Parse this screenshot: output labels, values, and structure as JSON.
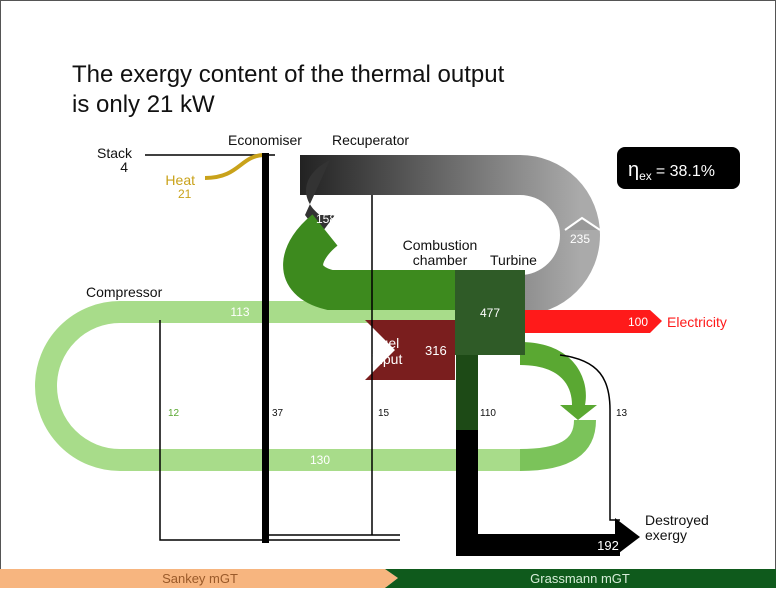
{
  "title": [
    "The exergy content of the thermal output",
    "is only 21 kW"
  ],
  "efficiency": {
    "symbol": "η",
    "subscript": "ex",
    "text": "= 38.1%"
  },
  "nodes": {
    "stack": "Stack",
    "economiser": "Economiser",
    "recuperator": "Recuperator",
    "heat": "Heat",
    "combustion": [
      "Combustion",
      "chamber"
    ],
    "turbine": "Turbine",
    "compressor": "Compressor",
    "fuel": [
      "Fuel",
      "input"
    ],
    "electricity": "Electricity",
    "destroyed": [
      "Destroyed",
      "exergy"
    ]
  },
  "flows": {
    "stack": "4",
    "heat": "21",
    "recuperator": "158",
    "turbine_loop": "235",
    "turbine": "477",
    "compressor": "113",
    "fuel": "316",
    "electricity": "100",
    "loss_compressor": "12",
    "loss_economiser": "37",
    "loss_recuperator": "15",
    "loss_combustion": "110",
    "loss_turbine": "13",
    "return": "130",
    "destroyed": "192"
  },
  "footer": {
    "left": "Sankey mGT",
    "right": "Grassmann mGT"
  }
}
